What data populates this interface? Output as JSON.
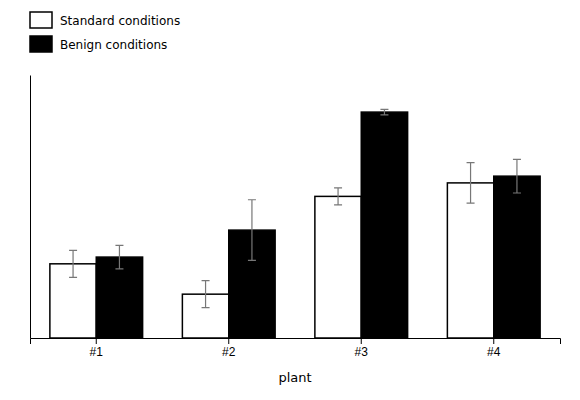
{
  "chart_data": {
    "type": "bar",
    "x_label": "plant",
    "categories": [
      "#1",
      "#2",
      "#3",
      "#4"
    ],
    "series": [
      {
        "name": "Standard conditions",
        "color": "#ffffff",
        "values": [
          0.22,
          0.13,
          0.42,
          0.46
        ],
        "errors": [
          0.04,
          0.04,
          0.025,
          0.06
        ]
      },
      {
        "name": "Benign conditions",
        "color": "#000000",
        "values": [
          0.24,
          0.32,
          0.67,
          0.48
        ],
        "errors": [
          0.035,
          0.09,
          0.008,
          0.05
        ]
      }
    ],
    "ylim": [
      0,
      0.78
    ],
    "grid": false,
    "legend": "upper left",
    "tick_labels": "x"
  }
}
